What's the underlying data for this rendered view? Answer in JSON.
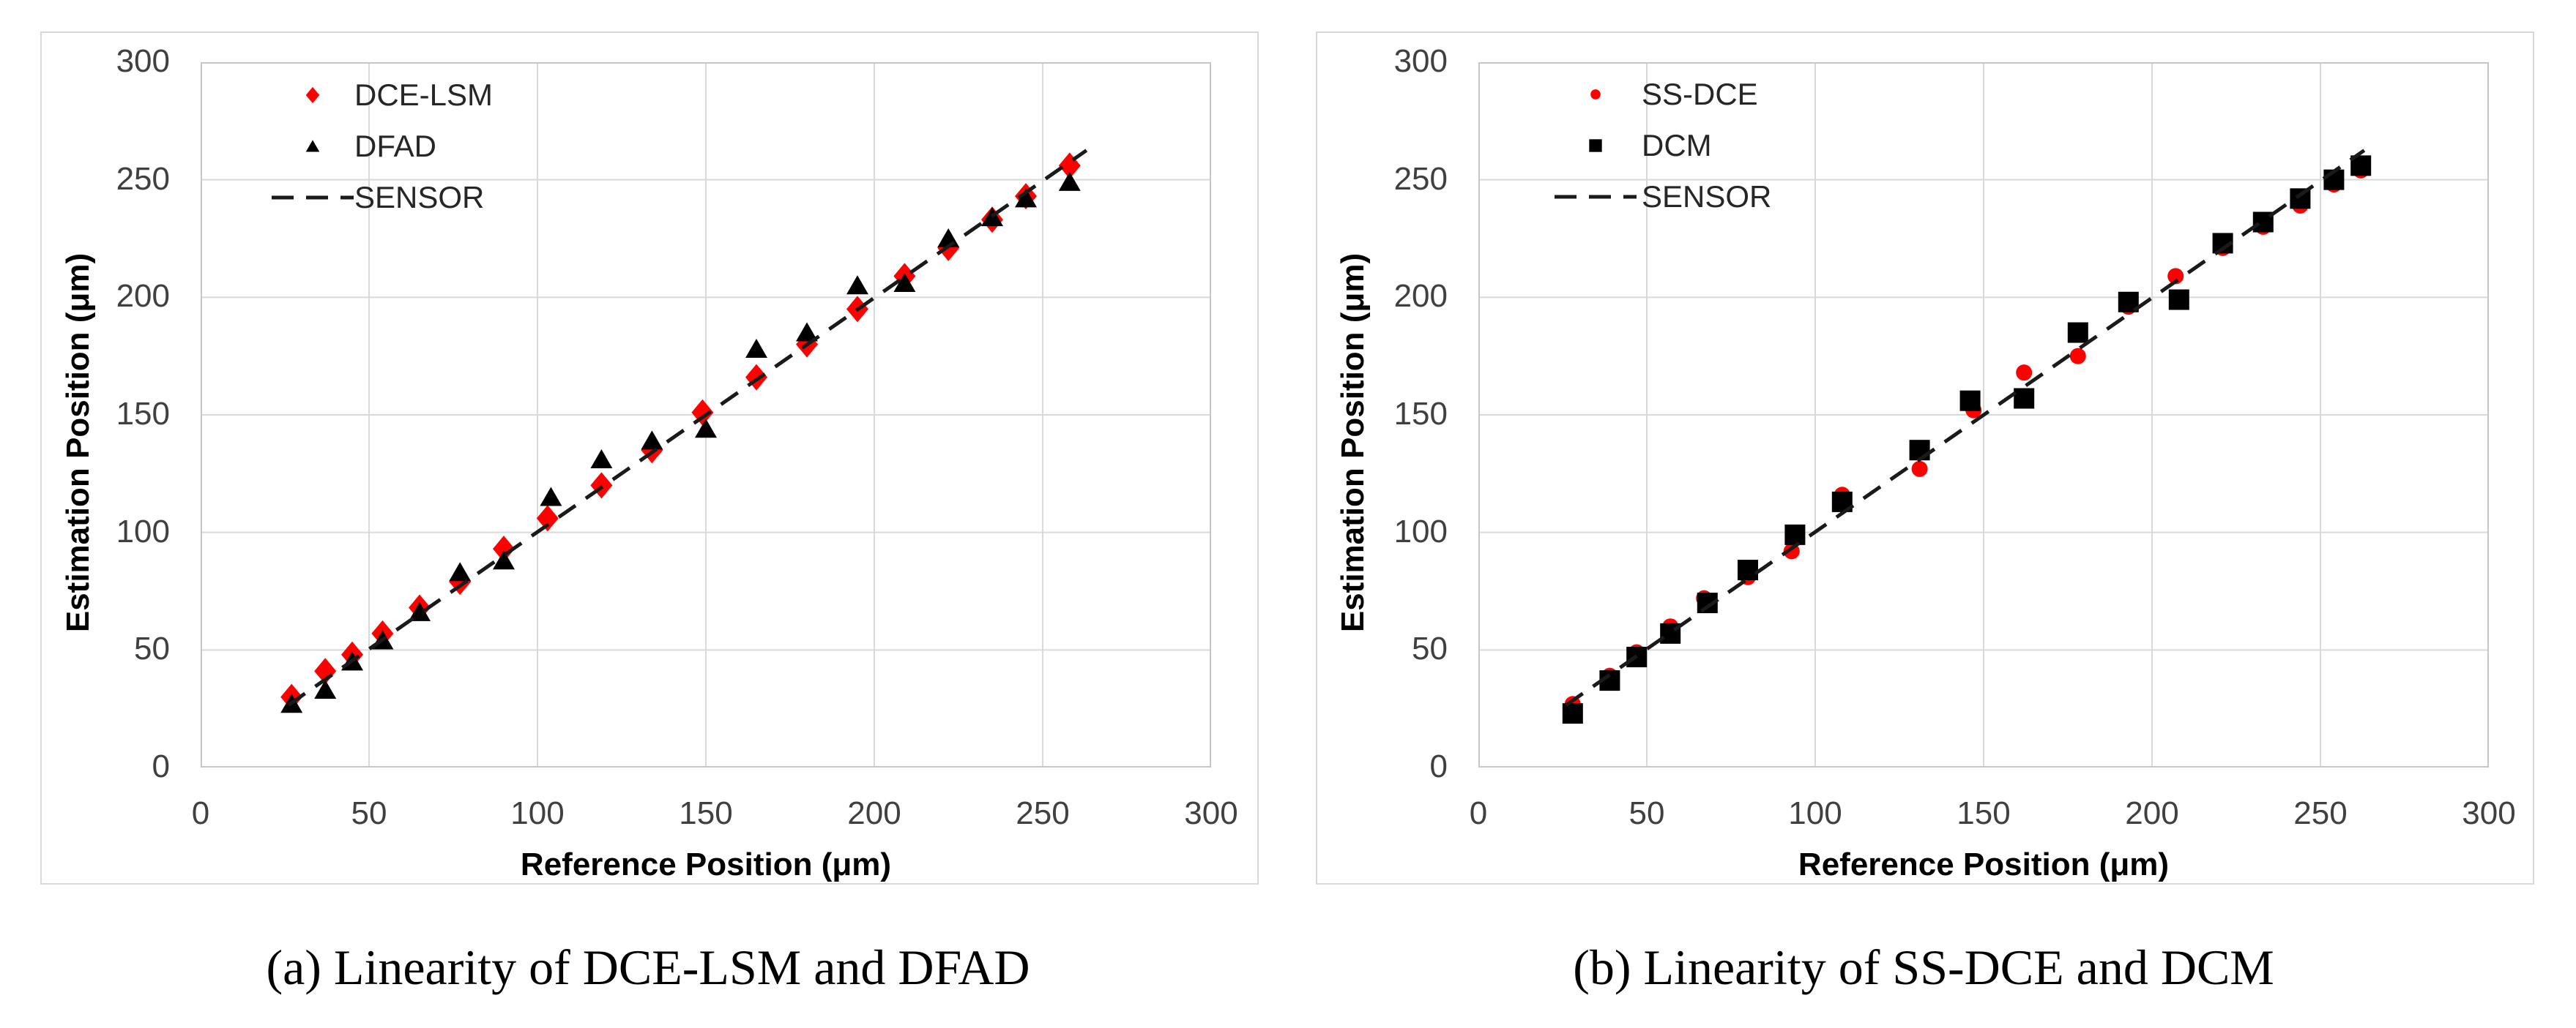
{
  "page": {
    "background": "#ffffff"
  },
  "chart_data": [
    {
      "type": "scatter",
      "caption": "(a) Linearity of DCE-LSM and DFAD",
      "xlabel": "Reference Position  (μm)",
      "ylabel": "Estimation Position  (μm)",
      "xlim": [
        0,
        300
      ],
      "ylim": [
        0,
        300
      ],
      "x_ticks": [
        0,
        50,
        100,
        150,
        200,
        250,
        300
      ],
      "y_ticks": [
        0,
        50,
        100,
        150,
        200,
        250,
        300
      ],
      "grid": true,
      "legend_position": "upper-left-inside",
      "colors": {
        "red": "#ff0000",
        "black": "#000000",
        "gridline": "#d9d9d9"
      },
      "series": [
        {
          "name": "DCE-LSM",
          "marker": "diamond",
          "color": "#ff0000",
          "points": [
            [
              27,
              30
            ],
            [
              37,
              41
            ],
            [
              45,
              48
            ],
            [
              54,
              57
            ],
            [
              65,
              68
            ],
            [
              77,
              79
            ],
            [
              90,
              93
            ],
            [
              103,
              106
            ],
            [
              119,
              120
            ],
            [
              134,
              135
            ],
            [
              149,
              151
            ],
            [
              165,
              166
            ],
            [
              180,
              180
            ],
            [
              195,
              195
            ],
            [
              209,
              209
            ],
            [
              222,
              221
            ],
            [
              235,
              233
            ],
            [
              245,
              243
            ],
            [
              258,
              256
            ]
          ]
        },
        {
          "name": "DFAD",
          "marker": "triangle",
          "color": "#000000",
          "points": [
            [
              27,
              27
            ],
            [
              37,
              33
            ],
            [
              45,
              45
            ],
            [
              54,
              54
            ],
            [
              65,
              66
            ],
            [
              77,
              83
            ],
            [
              90,
              88
            ],
            [
              104,
              115
            ],
            [
              119,
              131
            ],
            [
              134,
              139
            ],
            [
              150,
              144
            ],
            [
              165,
              178
            ],
            [
              180,
              185
            ],
            [
              195,
              205
            ],
            [
              209,
              206
            ],
            [
              222,
              225
            ],
            [
              235,
              234
            ],
            [
              245,
              242
            ],
            [
              258,
              249
            ]
          ]
        },
        {
          "name": "SENSOR",
          "marker": "dashed-line",
          "color": "#1a1a1a",
          "line": [
            [
              26,
              26.5
            ],
            [
              263,
              262.5
            ]
          ]
        }
      ]
    },
    {
      "type": "scatter",
      "caption": "(b) Linearity of SS-DCE and DCM",
      "xlabel": "Reference Position  (μm)",
      "ylabel": "Estimation Position  (μm)",
      "xlim": [
        0,
        300
      ],
      "ylim": [
        0,
        300
      ],
      "x_ticks": [
        0,
        50,
        100,
        150,
        200,
        250,
        300
      ],
      "y_ticks": [
        0,
        50,
        100,
        150,
        200,
        250,
        300
      ],
      "grid": true,
      "legend_position": "upper-left-inside",
      "colors": {
        "red": "#ff0000",
        "black": "#000000",
        "gridline": "#d9d9d9"
      },
      "series": [
        {
          "name": "SS-DCE",
          "marker": "circle",
          "color": "#ff0000",
          "points": [
            [
              28,
              27
            ],
            [
              39,
              39
            ],
            [
              47,
              49
            ],
            [
              57,
              60
            ],
            [
              67,
              72
            ],
            [
              80,
              81
            ],
            [
              93,
              92
            ],
            [
              108,
              116
            ],
            [
              131,
              127
            ],
            [
              147,
              152
            ],
            [
              162,
              168
            ],
            [
              178,
              175
            ],
            [
              193,
              196
            ],
            [
              207,
              209
            ],
            [
              221,
              221
            ],
            [
              233,
              230
            ],
            [
              244,
              239
            ],
            [
              254,
              248
            ],
            [
              262,
              254
            ]
          ]
        },
        {
          "name": "DCM",
          "marker": "square",
          "color": "#000000",
          "points": [
            [
              28,
              23
            ],
            [
              39,
              37
            ],
            [
              47,
              47
            ],
            [
              57,
              57
            ],
            [
              68,
              70
            ],
            [
              80,
              84
            ],
            [
              94,
              99
            ],
            [
              108,
              113
            ],
            [
              131,
              135
            ],
            [
              146,
              156
            ],
            [
              162,
              157
            ],
            [
              178,
              185
            ],
            [
              193,
              198
            ],
            [
              208,
              199
            ],
            [
              221,
              223
            ],
            [
              233,
              232
            ],
            [
              244,
              242
            ],
            [
              254,
              250
            ],
            [
              262,
              256
            ]
          ]
        },
        {
          "name": "SENSOR",
          "marker": "dashed-line",
          "color": "#1a1a1a",
          "line": [
            [
              26,
              26.5
            ],
            [
              263,
              262.5
            ]
          ]
        }
      ]
    }
  ]
}
